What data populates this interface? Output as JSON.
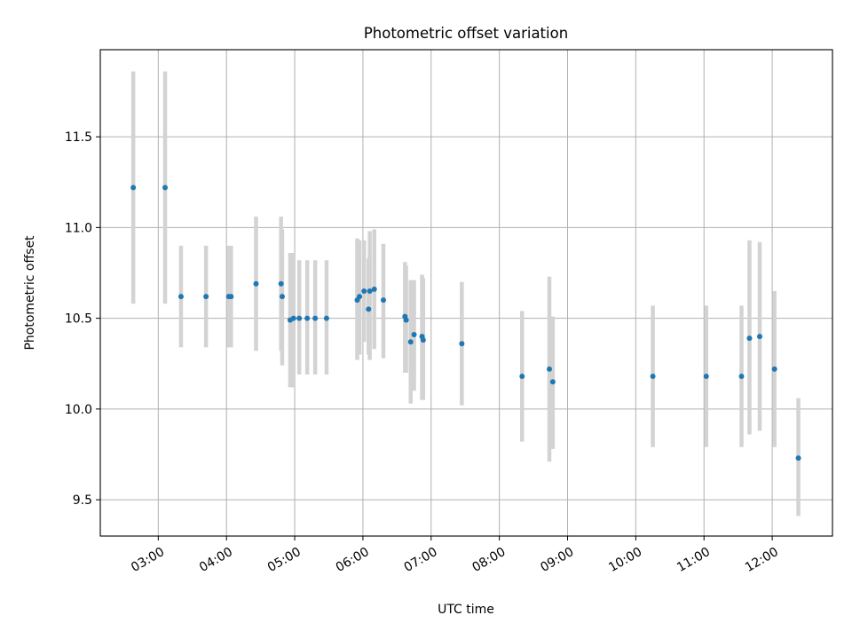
{
  "chart_data": {
    "type": "scatter",
    "title": "Photometric offset variation",
    "xlabel": "UTC time",
    "ylabel": "Photometric offset",
    "x_unit": "hours UTC",
    "xlim": [
      "02:09",
      "12:53"
    ],
    "ylim": [
      9.3,
      11.98
    ],
    "x_ticks": [
      "03:00",
      "04:00",
      "05:00",
      "06:00",
      "07:00",
      "08:00",
      "09:00",
      "10:00",
      "11:00",
      "12:00"
    ],
    "y_ticks": [
      "9.5",
      "10.0",
      "10.5",
      "11.0",
      "11.5"
    ],
    "grid": true,
    "series": [
      {
        "marker_color": "#1f77b4",
        "errorbar_color": "#d3d3d3",
        "points": [
          {
            "x": "02:38",
            "y": 11.22,
            "ylo": 10.58,
            "yhi": 11.86
          },
          {
            "x": "03:06",
            "y": 11.22,
            "ylo": 10.58,
            "yhi": 11.86
          },
          {
            "x": "03:20",
            "y": 10.62,
            "ylo": 10.34,
            "yhi": 10.9
          },
          {
            "x": "03:42",
            "y": 10.62,
            "ylo": 10.34,
            "yhi": 10.9
          },
          {
            "x": "04:02",
            "y": 10.62,
            "ylo": 10.34,
            "yhi": 10.9
          },
          {
            "x": "04:04",
            "y": 10.62,
            "ylo": 10.34,
            "yhi": 10.9
          },
          {
            "x": "04:26",
            "y": 10.69,
            "ylo": 10.32,
            "yhi": 11.06
          },
          {
            "x": "04:48",
            "y": 10.69,
            "ylo": 10.32,
            "yhi": 11.06
          },
          {
            "x": "04:49",
            "y": 10.62,
            "ylo": 10.24,
            "yhi": 10.99
          },
          {
            "x": "04:56",
            "y": 10.49,
            "ylo": 10.12,
            "yhi": 10.86
          },
          {
            "x": "04:59",
            "y": 10.5,
            "ylo": 10.12,
            "yhi": 10.86
          },
          {
            "x": "05:04",
            "y": 10.5,
            "ylo": 10.19,
            "yhi": 10.82
          },
          {
            "x": "05:11",
            "y": 10.5,
            "ylo": 10.19,
            "yhi": 10.82
          },
          {
            "x": "05:18",
            "y": 10.5,
            "ylo": 10.19,
            "yhi": 10.82
          },
          {
            "x": "05:28",
            "y": 10.5,
            "ylo": 10.19,
            "yhi": 10.82
          },
          {
            "x": "05:55",
            "y": 10.6,
            "ylo": 10.27,
            "yhi": 10.94
          },
          {
            "x": "05:57",
            "y": 10.62,
            "ylo": 10.3,
            "yhi": 10.93
          },
          {
            "x": "06:01",
            "y": 10.65,
            "ylo": 10.37,
            "yhi": 10.93
          },
          {
            "x": "06:05",
            "y": 10.55,
            "ylo": 10.3,
            "yhi": 10.83
          },
          {
            "x": "06:06",
            "y": 10.65,
            "ylo": 10.27,
            "yhi": 10.98
          },
          {
            "x": "06:10",
            "y": 10.66,
            "ylo": 10.33,
            "yhi": 10.99
          },
          {
            "x": "06:18",
            "y": 10.6,
            "ylo": 10.28,
            "yhi": 10.91
          },
          {
            "x": "06:37",
            "y": 10.51,
            "ylo": 10.2,
            "yhi": 10.81
          },
          {
            "x": "06:38",
            "y": 10.49,
            "ylo": 10.2,
            "yhi": 10.79
          },
          {
            "x": "06:42",
            "y": 10.37,
            "ylo": 10.03,
            "yhi": 10.71
          },
          {
            "x": "06:45",
            "y": 10.41,
            "ylo": 10.1,
            "yhi": 10.71
          },
          {
            "x": "06:52",
            "y": 10.4,
            "ylo": 10.05,
            "yhi": 10.74
          },
          {
            "x": "06:53",
            "y": 10.38,
            "ylo": 10.05,
            "yhi": 10.72
          },
          {
            "x": "07:27",
            "y": 10.36,
            "ylo": 10.02,
            "yhi": 10.7
          },
          {
            "x": "08:20",
            "y": 10.18,
            "ylo": 9.82,
            "yhi": 10.54
          },
          {
            "x": "08:44",
            "y": 10.22,
            "ylo": 9.71,
            "yhi": 10.73
          },
          {
            "x": "08:47",
            "y": 10.15,
            "ylo": 9.78,
            "yhi": 10.51
          },
          {
            "x": "10:15",
            "y": 10.18,
            "ylo": 9.79,
            "yhi": 10.57
          },
          {
            "x": "11:02",
            "y": 10.18,
            "ylo": 9.79,
            "yhi": 10.57
          },
          {
            "x": "11:33",
            "y": 10.18,
            "ylo": 9.79,
            "yhi": 10.57
          },
          {
            "x": "11:40",
            "y": 10.39,
            "ylo": 9.86,
            "yhi": 10.93
          },
          {
            "x": "11:49",
            "y": 10.4,
            "ylo": 9.88,
            "yhi": 10.92
          },
          {
            "x": "12:02",
            "y": 10.22,
            "ylo": 9.79,
            "yhi": 10.65
          },
          {
            "x": "12:23",
            "y": 9.73,
            "ylo": 9.41,
            "yhi": 10.06
          }
        ]
      }
    ]
  }
}
